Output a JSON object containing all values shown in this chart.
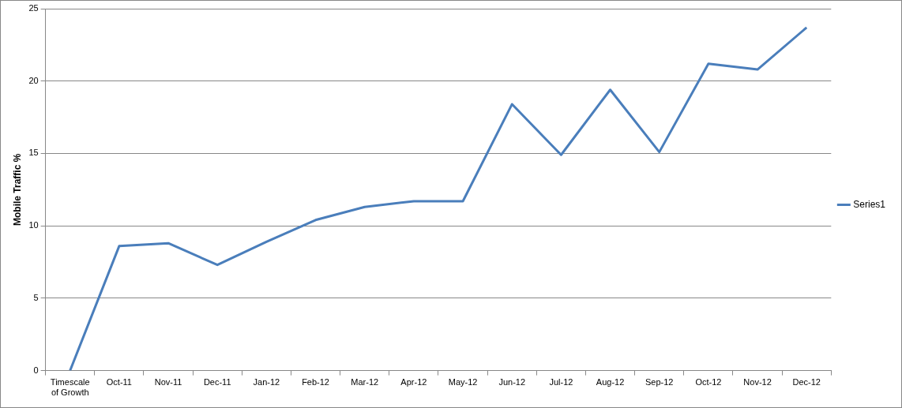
{
  "chart_data": {
    "type": "line",
    "ylabel": "Mobile Traffic %",
    "categories": [
      "Timescale of Growth",
      "Oct-11",
      "Nov-11",
      "Dec-11",
      "Jan-12",
      "Feb-12",
      "Mar-12",
      "Apr-12",
      "May-12",
      "Jun-12",
      "Jul-12",
      "Aug-12",
      "Sep-12",
      "Oct-12",
      "Nov-12",
      "Dec-12"
    ],
    "series": [
      {
        "name": "Series1",
        "color": "#4a7ebb",
        "values": [
          0,
          8.6,
          8.8,
          7.3,
          8.9,
          10.4,
          11.3,
          11.7,
          11.7,
          18.4,
          14.9,
          19.4,
          15.1,
          21.2,
          20.8,
          23.7
        ]
      }
    ],
    "ylim": [
      0,
      25
    ],
    "yticks": [
      0,
      5,
      10,
      15,
      20,
      25
    ],
    "grid": "y",
    "legend": "right",
    "marker": "none",
    "line_style": "solid"
  }
}
